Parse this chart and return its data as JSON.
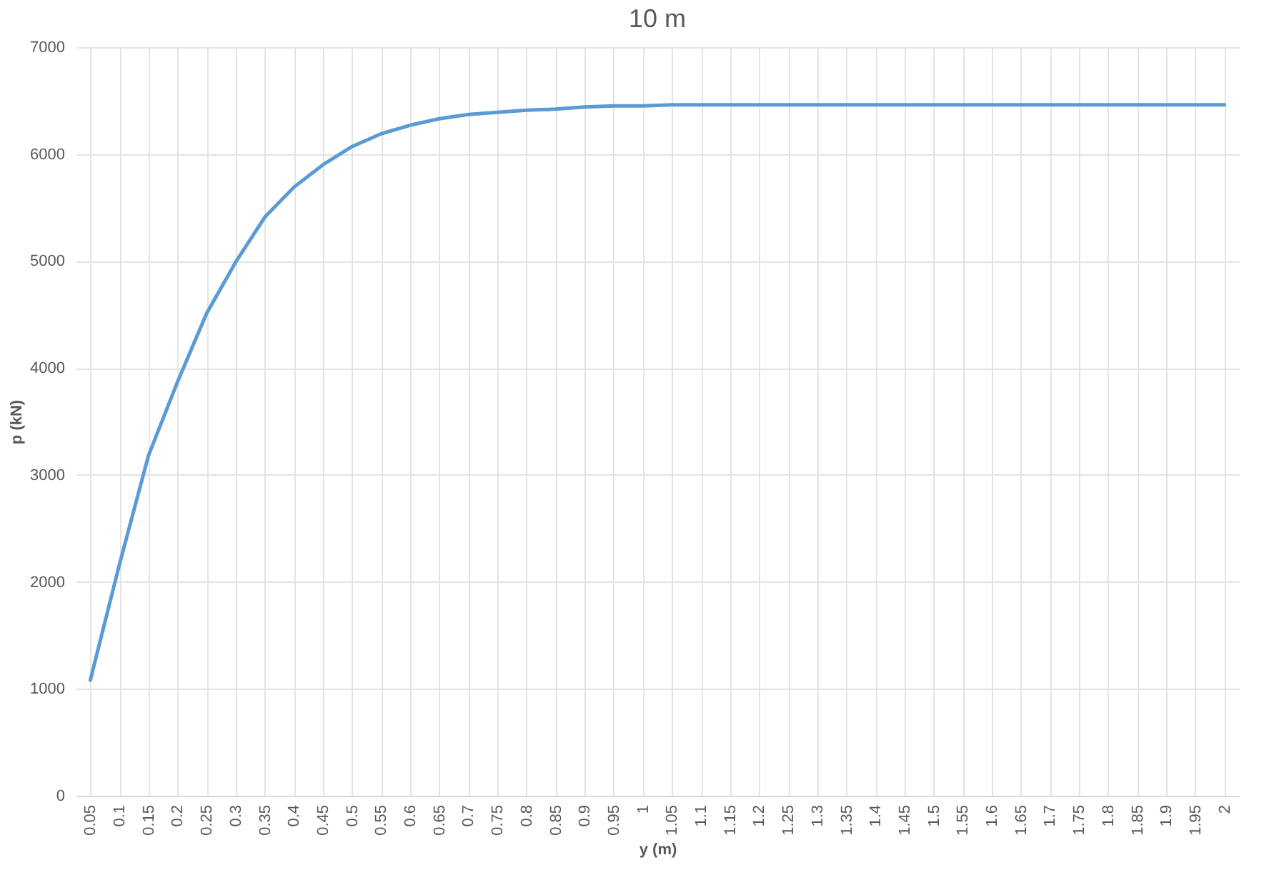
{
  "chart_data": {
    "type": "line",
    "title": "10 m",
    "xlabel": "y (m)",
    "ylabel": "p (kN)",
    "categories": [
      "0.05",
      "0.1",
      "0.15",
      "0.2",
      "0.25",
      "0.3",
      "0.35",
      "0.4",
      "0.45",
      "0.5",
      "0.55",
      "0.6",
      "0.65",
      "0.7",
      "0.75",
      "0.8",
      "0.85",
      "0.9",
      "0.95",
      "1",
      "1.05",
      "1.1",
      "1.15",
      "1.2",
      "1.25",
      "1.3",
      "1.35",
      "1.4",
      "1.45",
      "1.5",
      "1.55",
      "1.6",
      "1.65",
      "1.7",
      "1.75",
      "1.8",
      "1.85",
      "1.9",
      "1.95",
      "2"
    ],
    "series": [
      {
        "color": "#5b9bd5",
        "values": [
          1080,
          2160,
          3180,
          3870,
          4510,
          4990,
          5410,
          5690,
          5900,
          6070,
          6190,
          6270,
          6330,
          6370,
          6390,
          6410,
          6420,
          6440,
          6450,
          6450,
          6460,
          6460,
          6460,
          6460,
          6460,
          6460,
          6460,
          6460,
          6460,
          6460,
          6460,
          6460,
          6460,
          6460,
          6460,
          6460,
          6460,
          6460,
          6460,
          6460
        ]
      }
    ],
    "ylim": [
      0,
      7000
    ],
    "yticks": [
      0,
      1000,
      2000,
      3000,
      4000,
      5000,
      6000,
      7000
    ],
    "grid": true
  }
}
